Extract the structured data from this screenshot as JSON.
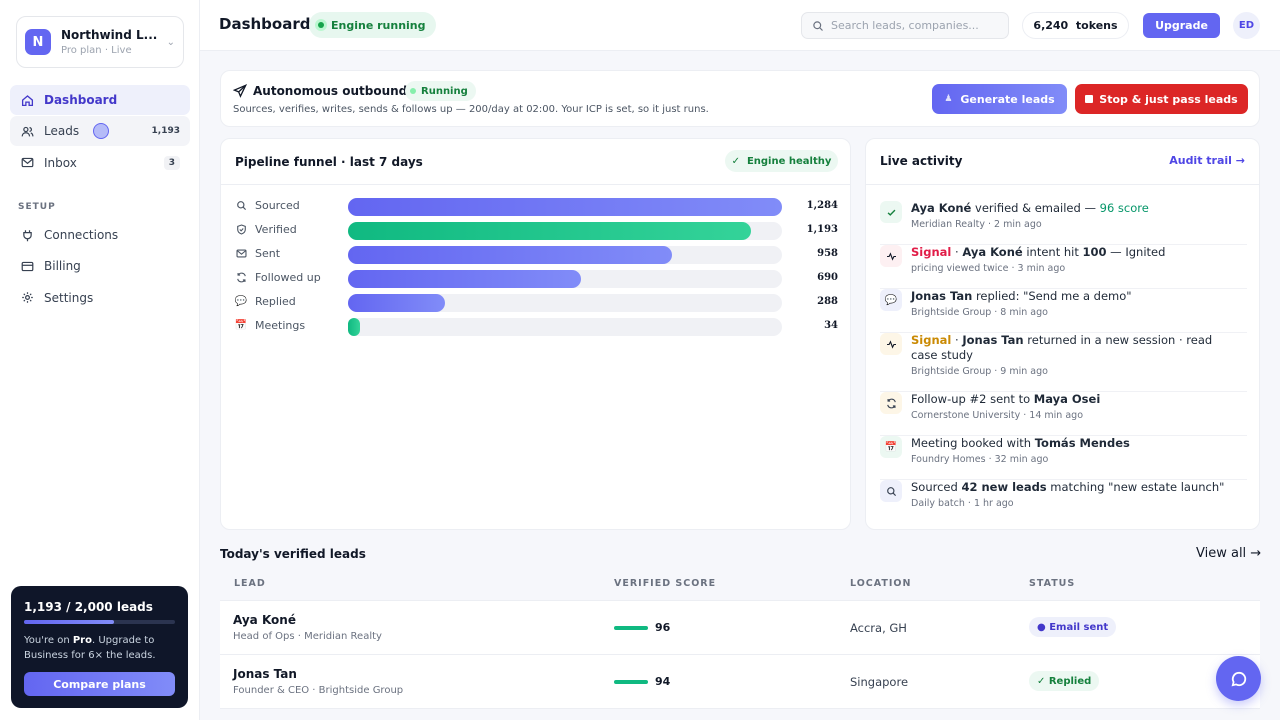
{
  "workspace": {
    "name": "Northwind L...",
    "plan": "Pro plan · Live",
    "initial": "N"
  },
  "nav": {
    "items": [
      {
        "label": "Dashboard",
        "icon": "home-icon"
      },
      {
        "label": "Leads",
        "count": "1,193",
        "icon": "users-icon"
      },
      {
        "label": "Inbox",
        "count": "3",
        "icon": "mail-icon"
      }
    ],
    "setup_label": "SETUP",
    "setup_items": [
      {
        "label": "Connections",
        "icon": "plug-icon"
      },
      {
        "label": "Billing",
        "icon": "card-icon"
      },
      {
        "label": "Settings",
        "icon": "gear-icon"
      }
    ]
  },
  "usage": {
    "title": "1,193 / 2,000 leads",
    "used_fraction": 0.5965,
    "text_prefix": "You're on ",
    "plan": "Pro",
    "text_suffix": ". Upgrade to Business for 6× the leads.",
    "button": "Compare plans"
  },
  "header": {
    "title": "Dashboard",
    "engine_status": "Engine running",
    "search_placeholder": "Search leads, companies...",
    "tokens": "6,240  tokens",
    "upgrade": "Upgrade",
    "avatar": "ED"
  },
  "outbound": {
    "title": "Autonomous outbound",
    "status": "Running",
    "description": "Sources, verifies, writes, sends & follows up — 200/day at 02:00. Your ICP is set, so it just runs.",
    "generate_button": "Generate leads",
    "stop_button": "Stop & just pass leads"
  },
  "funnel": {
    "title": "Pipeline funnel · last 7 days",
    "health": "✓  Engine healthy",
    "max": 1284,
    "stages": [
      {
        "label": "Sourced",
        "value": 1284,
        "display": "1,284",
        "icon": "search-icon",
        "color": "indigo"
      },
      {
        "label": "Verified",
        "value": 1193,
        "display": "1,193",
        "icon": "shield-icon",
        "color": "green"
      },
      {
        "label": "Sent",
        "value": 958,
        "display": "958",
        "icon": "mail-icon",
        "color": "indigo"
      },
      {
        "label": "Followed up",
        "value": 690,
        "display": "690",
        "icon": "refresh-icon",
        "color": "indigo"
      },
      {
        "label": "Replied",
        "value": 288,
        "display": "288",
        "icon": "chat-icon",
        "color": "indigo"
      },
      {
        "label": "Meetings",
        "value": 34,
        "display": "34",
        "icon": "calendar-icon",
        "color": "green"
      }
    ]
  },
  "activity": {
    "title": "Live activity",
    "audit_link": "Audit trail →",
    "items": [
      {
        "icon": "check-icon",
        "html": "<b>Aya Koné</b> verified &amp; emailed — <span style=\"color:#059669\">96 score</span>",
        "meta": "Meridian Realty · 2 min ago"
      },
      {
        "icon": "spark-icon",
        "html": "<b style=\"color:#e11d48\">Signal</b> · <b>Aya Koné</b> intent hit <b>100</b> — Ignited",
        "meta": "pricing viewed twice · 3 min ago"
      },
      {
        "icon": "chat-icon",
        "html": "<b>Jonas Tan</b> replied: \"Send me a demo\"",
        "meta": "Brightside Group · 8 min ago"
      },
      {
        "icon": "spark-icon",
        "html": "<b style=\"color:#ca8a04\">Signal</b> · <b>Jonas Tan</b> returned in a new session · read case study",
        "meta": "Brightside Group · 9 min ago"
      },
      {
        "icon": "refresh-icon",
        "html": "Follow-up #2 sent to <b>Maya Osei</b>",
        "meta": "Cornerstone University · 14 min ago"
      },
      {
        "icon": "calendar-icon",
        "html": "Meeting booked with <b>Tomás Mendes</b>",
        "meta": "Foundry Homes · 32 min ago"
      },
      {
        "icon": "search-icon",
        "html": "Sourced <b>42 new leads</b> matching \"new estate launch\"",
        "meta": "Daily batch · 1 hr ago"
      }
    ]
  },
  "leads": {
    "title": "Today's verified leads",
    "view_all": "View all →",
    "columns": [
      "LEAD",
      "VERIFIED SCORE",
      "LOCATION",
      "STATUS"
    ],
    "rows": [
      {
        "name": "Aya Koné",
        "sub": "Head of Ops · Meridian Realty",
        "score": "96",
        "location": "Accra, GH",
        "status": "● Email sent"
      },
      {
        "name": "Jonas Tan",
        "sub": "Founder & CEO · Brightside Group",
        "score": "94",
        "location": "Singapore",
        "status": "✓ Replied"
      }
    ]
  }
}
